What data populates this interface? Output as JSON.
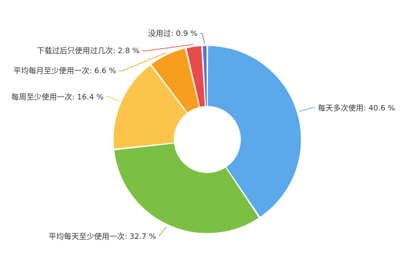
{
  "chart_data": {
    "type": "pie",
    "donut": true,
    "start_angle_deg": 0,
    "direction": "clockwise",
    "legend": "none",
    "slices": [
      {
        "label": "每天多次使用",
        "value": 40.6,
        "display": "每天多次使用: 40.6 %",
        "color": "#5ba8ea"
      },
      {
        "label": "平均每天至少使用一次",
        "value": 32.7,
        "display": "平均每天至少使用一次: 32.7 %",
        "color": "#7cc043"
      },
      {
        "label": "每周至少使用一次",
        "value": 16.4,
        "display": "每周至少使用一次: 16.4 %",
        "color": "#fcc44a"
      },
      {
        "label": "平均每月至少使用一次",
        "value": 6.6,
        "display": "平均每月至少使用一次: 6.6 %",
        "color": "#f79e1e"
      },
      {
        "label": "下载过后只使用过几次",
        "value": 2.8,
        "display": "下载过后只使用过几次: 2.8 %",
        "color": "#e84b4b"
      },
      {
        "label": "没用过",
        "value": 0.9,
        "display": "没用过: 0.9 %",
        "color": "#5b6fd6"
      }
    ]
  }
}
